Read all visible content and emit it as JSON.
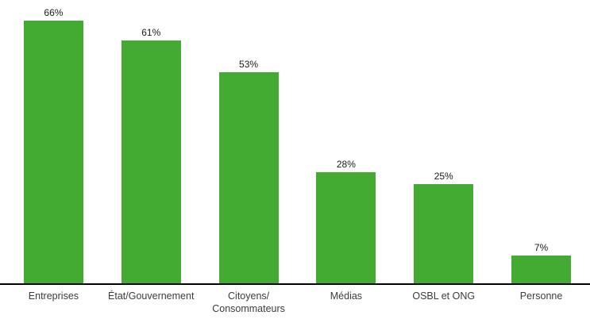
{
  "chart_data": {
    "type": "bar",
    "title": "",
    "xlabel": "",
    "ylabel": "",
    "categories": [
      "Entreprises",
      "État/Gouvernement",
      "Citoyens/Consommateurs",
      "Médias",
      "OSBL et ONG",
      "Personne"
    ],
    "category_label_lines": [
      [
        "Entreprises"
      ],
      [
        "État/Gouvernement"
      ],
      [
        "Citoyens/",
        "Consommateurs"
      ],
      [
        "Médias"
      ],
      [
        "OSBL et ONG"
      ],
      [
        "Personne"
      ]
    ],
    "values": [
      66,
      61,
      53,
      28,
      25,
      7
    ],
    "value_labels": [
      "66%",
      "61%",
      "53%",
      "28%",
      "25%",
      "7%"
    ],
    "unit": "%",
    "bar_color": "#43aa32",
    "axis_line_color": "#000000",
    "label_text_color": "#3c3c3c",
    "value_text_color": "#1a1a1a",
    "grid": false,
    "legend": false,
    "y_axis_visible": false
  }
}
